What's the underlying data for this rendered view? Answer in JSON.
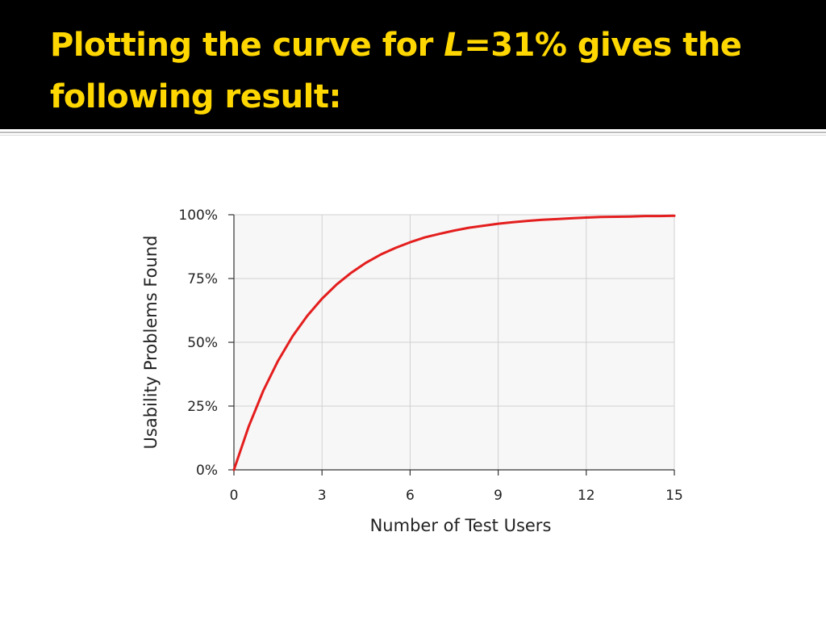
{
  "slide": {
    "title_prefix": "Plotting the curve for ",
    "title_variable": "L",
    "title_suffix": "=31% gives the following result:",
    "title_color": "#ffd700",
    "bar_color": "#000000"
  },
  "chart_data": {
    "type": "line",
    "title": "",
    "xlabel": "Number of Test Users",
    "ylabel": "Usability Problems Found",
    "xlim": [
      0,
      15
    ],
    "ylim": [
      0,
      100
    ],
    "x_ticks": [
      0,
      3,
      6,
      9,
      12,
      15
    ],
    "x_tick_labels": [
      "0",
      "3",
      "6",
      "9",
      "12",
      "15"
    ],
    "y_ticks": [
      0,
      25,
      50,
      75,
      100
    ],
    "y_tick_labels": [
      "0%",
      "25%",
      "50%",
      "75%",
      "100%"
    ],
    "grid": true,
    "plot_background": "#f7f7f7",
    "series": [
      {
        "color": "#e41e1e",
        "x": [
          0,
          0.5,
          1,
          1.5,
          2,
          2.5,
          3,
          3.5,
          4,
          4.5,
          5,
          5.5,
          6,
          6.5,
          7,
          7.5,
          8,
          8.5,
          9,
          9.5,
          10,
          10.5,
          11,
          11.5,
          12,
          12.5,
          13,
          13.5,
          14,
          14.5,
          15
        ],
        "values": [
          0,
          16.9,
          31,
          42.7,
          52.4,
          60.4,
          67.1,
          72.7,
          77.3,
          81.2,
          84.4,
          87,
          89.2,
          91.1,
          92.5,
          93.8,
          94.9,
          95.7,
          96.5,
          97.1,
          97.6,
          98,
          98.3,
          98.6,
          98.9,
          99.1,
          99.2,
          99.3,
          99.5,
          99.5,
          99.6
        ]
      }
    ]
  }
}
